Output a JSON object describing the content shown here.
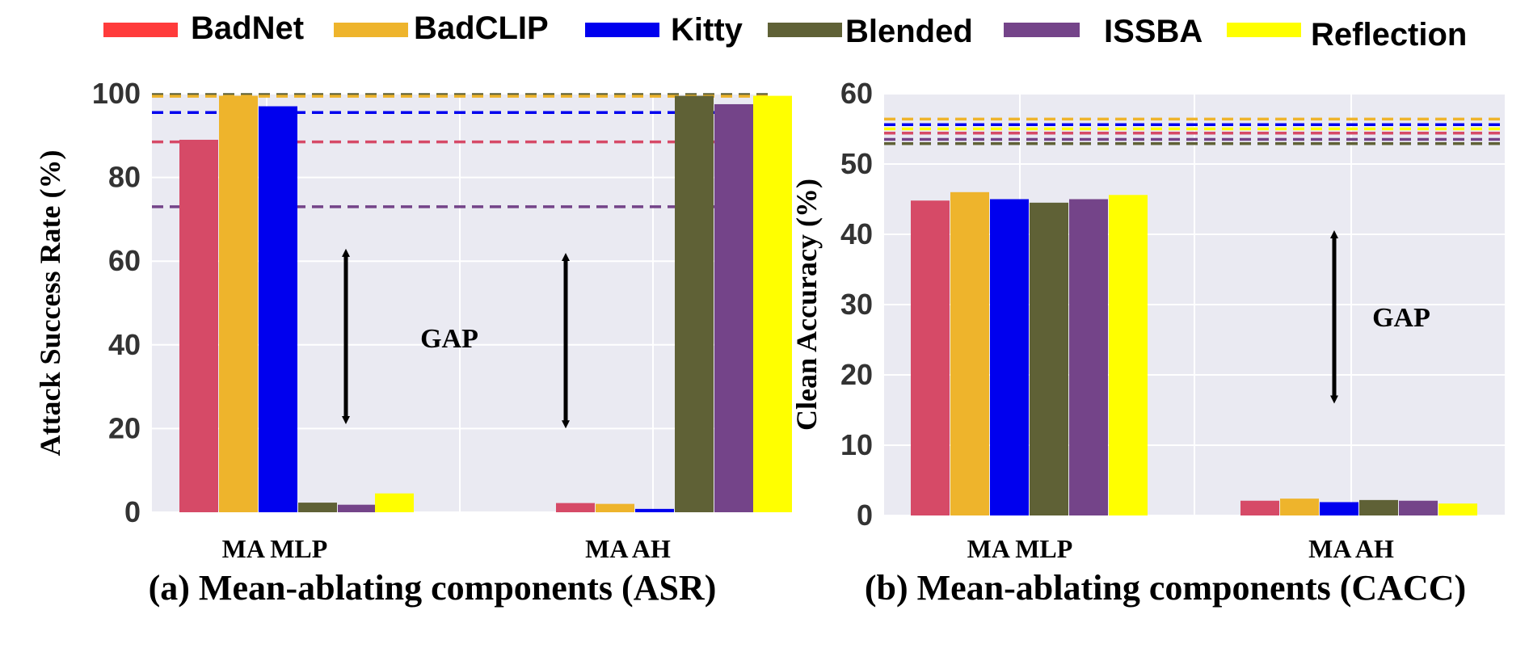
{
  "legend": [
    {
      "name": "BadNet",
      "color": "#ff3b3b"
    },
    {
      "name": "BadCLIP",
      "color": "#eeb42c"
    },
    {
      "name": "Kitty",
      "color": "#0000ee"
    },
    {
      "name": "Blended",
      "color": "#5f6136"
    },
    {
      "name": "ISSBA",
      "color": "#744489"
    },
    {
      "name": "Reflection",
      "color": "#ffff00"
    }
  ],
  "chart_data": [
    {
      "type": "bar",
      "caption": "(a) Mean-ablating components (ASR)",
      "ylabel": "Attack Success Rate (%)",
      "categories": [
        "MA MLP",
        "MA AH"
      ],
      "ylim": [
        0,
        100
      ],
      "yticks": [
        "0",
        "20",
        "40",
        "60",
        "80",
        "100"
      ],
      "series": [
        {
          "name": "BadNet",
          "color": "#d64a67",
          "values": [
            89,
            2.2
          ]
        },
        {
          "name": "BadCLIP",
          "color": "#eeb42c",
          "values": [
            99.5,
            2
          ]
        },
        {
          "name": "Kitty",
          "color": "#0000ee",
          "values": [
            97,
            0.8
          ]
        },
        {
          "name": "Blended",
          "color": "#5f6136",
          "values": [
            2.3,
            99.5
          ]
        },
        {
          "name": "ISSBA",
          "color": "#744489",
          "values": [
            1.8,
            97.5
          ]
        },
        {
          "name": "Reflection",
          "color": "#ffff00",
          "values": [
            4.5,
            99.5
          ]
        }
      ],
      "reference_lines": [
        {
          "color": "#5f6136",
          "value": 99.8
        },
        {
          "color": "#eeb42c",
          "value": 99.4
        },
        {
          "color": "#0000ee",
          "value": 95.5
        },
        {
          "color": "#d64a67",
          "value": 88.5
        },
        {
          "color": "#744489",
          "value": 73
        }
      ],
      "annotation": {
        "text": "GAP",
        "arrows": [
          {
            "group": 0,
            "from": 22,
            "to": 62
          },
          {
            "group": 1,
            "from": 21,
            "to": 61
          }
        ]
      }
    },
    {
      "type": "bar",
      "caption": "(b) Mean-ablating components (CACC)",
      "ylabel": "Clean Accuracy (%)",
      "categories": [
        "MA MLP",
        "MA AH"
      ],
      "ylim": [
        0,
        60
      ],
      "yticks": [
        "0",
        "10",
        "20",
        "30",
        "40",
        "50",
        "60"
      ],
      "series": [
        {
          "name": "BadNet",
          "color": "#d64a67",
          "values": [
            44.8,
            2.1
          ]
        },
        {
          "name": "BadCLIP",
          "color": "#eeb42c",
          "values": [
            46,
            2.4
          ]
        },
        {
          "name": "Kitty",
          "color": "#0000ee",
          "values": [
            45,
            1.9
          ]
        },
        {
          "name": "Blended",
          "color": "#5f6136",
          "values": [
            44.5,
            2.2
          ]
        },
        {
          "name": "ISSBA",
          "color": "#744489",
          "values": [
            45,
            2.1
          ]
        },
        {
          "name": "Reflection",
          "color": "#ffff00",
          "values": [
            45.6,
            1.7
          ]
        }
      ],
      "reference_lines": [
        {
          "color": "#eeb42c",
          "value": 56.4
        },
        {
          "color": "#0000ee",
          "value": 55.6
        },
        {
          "color": "#ffff00",
          "value": 55
        },
        {
          "color": "#d64a67",
          "value": 54.4
        },
        {
          "color": "#744489",
          "value": 53.5
        },
        {
          "color": "#5f6136",
          "value": 52.9
        }
      ],
      "annotation": {
        "text": "GAP",
        "arrows": [
          {
            "group": 1,
            "from": 16.5,
            "to": 40
          }
        ]
      }
    }
  ]
}
